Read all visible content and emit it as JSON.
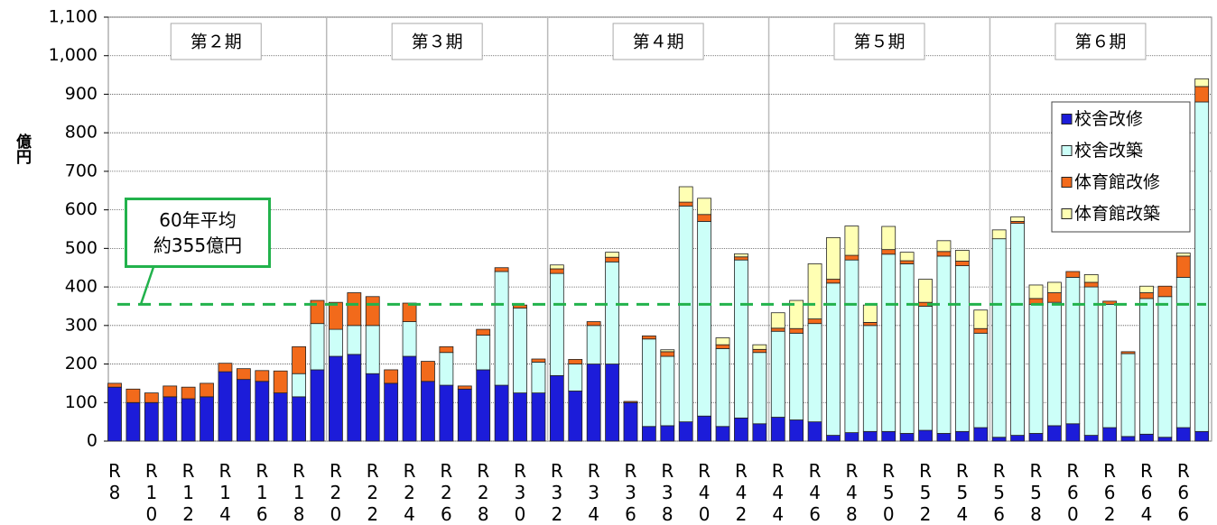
{
  "chart_data": {
    "type": "stacked-bar",
    "y_label": "億円",
    "categories": [
      "R 8",
      null,
      "R 10",
      null,
      "R 12",
      null,
      "R 14",
      null,
      "R 16",
      null,
      "R 18",
      null,
      "R 20",
      null,
      "R 22",
      null,
      "R 24",
      null,
      "R 26",
      null,
      "R 28",
      null,
      "R 30",
      null,
      "R 32",
      null,
      "R 34",
      null,
      "R 36",
      null,
      "R 38",
      null,
      "R 40",
      null,
      "R 42",
      null,
      "R 44",
      null,
      "R 46",
      null,
      "R 48",
      null,
      "R 50",
      null,
      "R 52",
      null,
      "R 54",
      null,
      "R 56",
      null,
      "R 58",
      null,
      "R 60",
      null,
      "R 62",
      null,
      "R 64",
      null,
      "R 66",
      null
    ],
    "series": [
      {
        "name": "校舎改修",
        "color": "#1c1cd9",
        "values": [
          140,
          100,
          100,
          115,
          110,
          115,
          180,
          160,
          155,
          125,
          115,
          185,
          220,
          225,
          175,
          150,
          220,
          155,
          145,
          135,
          185,
          145,
          125,
          125,
          170,
          130,
          200,
          200,
          100,
          38,
          40,
          50,
          65,
          38,
          60,
          45,
          62,
          55,
          50,
          15,
          22,
          25,
          25,
          20,
          28,
          20,
          25,
          35,
          10,
          15,
          20,
          40,
          45,
          15,
          35,
          12,
          18,
          10,
          35,
          25
        ]
      },
      {
        "name": "校舎改築",
        "color": "#ccfff8",
        "values": [
          0,
          0,
          0,
          0,
          0,
          0,
          0,
          0,
          0,
          0,
          60,
          120,
          70,
          75,
          125,
          0,
          90,
          0,
          85,
          0,
          90,
          295,
          220,
          80,
          265,
          70,
          100,
          265,
          0,
          227,
          180,
          560,
          505,
          202,
          410,
          185,
          223,
          225,
          255,
          395,
          448,
          275,
          460,
          440,
          322,
          460,
          430,
          245,
          515,
          550,
          335,
          320,
          380,
          385,
          320,
          215,
          352,
          365,
          390,
          855
        ]
      },
      {
        "name": "体育館改修",
        "color": "#f26a1b",
        "values": [
          10,
          35,
          25,
          28,
          30,
          35,
          22,
          28,
          28,
          57,
          70,
          60,
          70,
          85,
          75,
          35,
          48,
          52,
          15,
          8,
          15,
          10,
          8,
          8,
          12,
          12,
          10,
          12,
          3,
          8,
          12,
          10,
          18,
          10,
          8,
          8,
          8,
          12,
          12,
          10,
          12,
          8,
          12,
          8,
          10,
          12,
          12,
          12,
          0,
          5,
          15,
          25,
          15,
          12,
          8,
          5,
          15,
          27,
          55,
          40
        ]
      },
      {
        "name": "体育館改築",
        "color": "#ffffb3",
        "values": [
          0,
          0,
          0,
          0,
          0,
          0,
          0,
          0,
          0,
          0,
          0,
          0,
          0,
          0,
          0,
          0,
          0,
          0,
          0,
          0,
          0,
          0,
          0,
          0,
          10,
          0,
          0,
          13,
          0,
          0,
          5,
          40,
          42,
          18,
          8,
          12,
          40,
          73,
          143,
          108,
          76,
          45,
          60,
          22,
          60,
          28,
          28,
          48,
          23,
          12,
          35,
          27,
          0,
          20,
          0,
          0,
          17,
          0,
          8,
          20
        ]
      }
    ],
    "ylim": [
      0,
      1100
    ],
    "yticks": [
      0,
      100,
      200,
      300,
      400,
      500,
      600,
      700,
      800,
      900,
      {
        "value": 1000,
        "label": "1,000"
      },
      {
        "value": 1100,
        "label": "1,100"
      }
    ],
    "grid": true,
    "legend": "upper right",
    "periods": [
      "第２期",
      "第３期",
      "第４期",
      "第５期",
      "第６期"
    ],
    "average": {
      "value": 355,
      "color": "#22b24c",
      "label": [
        "60年平均",
        "約355億円"
      ]
    }
  }
}
